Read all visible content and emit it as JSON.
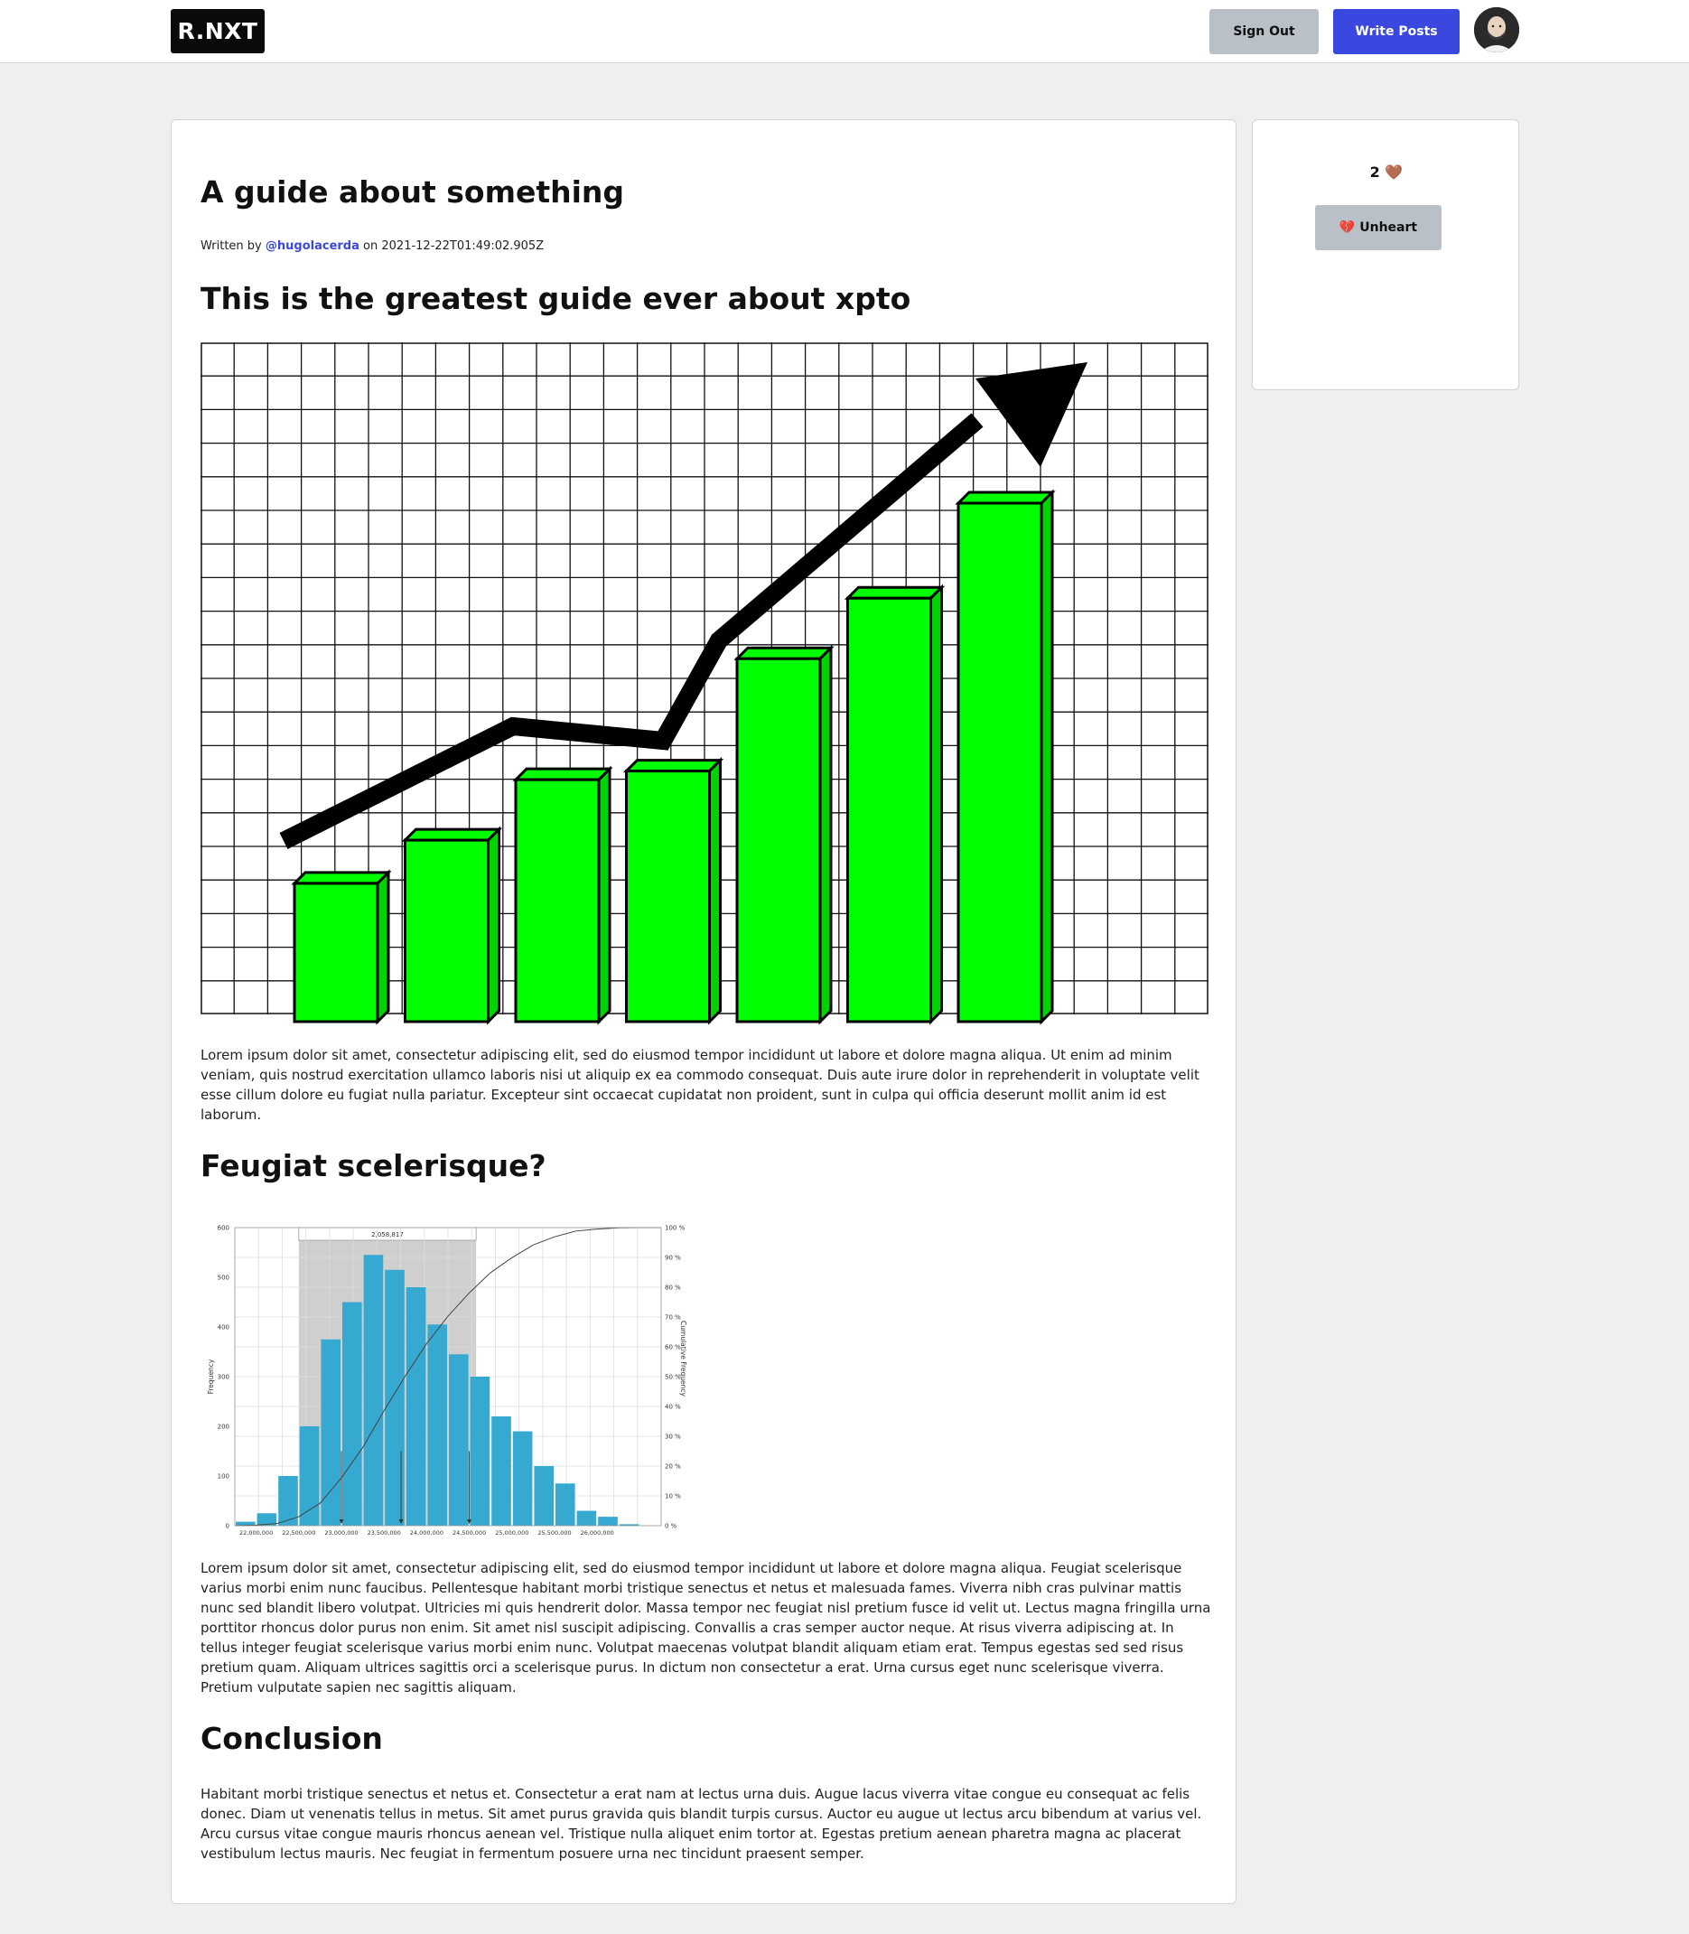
{
  "header": {
    "logo": "R.NXT",
    "sign_out_label": "Sign Out",
    "write_posts_label": "Write Posts"
  },
  "post": {
    "title": "A guide about something",
    "byline_prefix": "Written by",
    "author": "@hugolacerda",
    "byline_on": "on",
    "date": "2021-12-22T01:49:02.905Z",
    "heading1": "This is the greatest guide ever about xpto",
    "para1": "Lorem ipsum dolor sit amet, consectetur adipiscing elit, sed do eiusmod tempor incididunt ut labore et dolore magna aliqua. Ut enim ad minim veniam, quis nostrud exercitation ullamco laboris nisi ut aliquip ex ea commodo consequat. Duis aute irure dolor in reprehenderit in voluptate velit esse cillum dolore eu fugiat nulla pariatur. Excepteur sint occaecat cupidatat non proident, sunt in culpa qui officia deserunt mollit anim id est laborum.",
    "heading2": "Feugiat scelerisque?",
    "para2": "Lorem ipsum dolor sit amet, consectetur adipiscing elit, sed do eiusmod tempor incididunt ut labore et dolore magna aliqua. Feugiat scelerisque varius morbi enim nunc faucibus. Pellentesque habitant morbi tristique senectus et netus et malesuada fames. Viverra nibh cras pulvinar mattis nunc sed blandit libero volutpat. Ultricies mi quis hendrerit dolor. Massa tempor nec feugiat nisl pretium fusce id velit ut. Lectus magna fringilla urna porttitor rhoncus dolor purus non enim. Sit amet nisl suscipit adipiscing. Convallis a cras semper auctor neque. At risus viverra adipiscing at. In tellus integer feugiat scelerisque varius morbi enim nunc. Volutpat maecenas volutpat blandit aliquam etiam erat. Tempus egestas sed sed risus pretium quam. Aliquam ultrices sagittis orci a scelerisque purus. In dictum non consectetur a erat. Urna cursus eget nunc scelerisque viverra. Pretium vulputate sapien nec sagittis aliquam.",
    "heading3": "Conclusion",
    "para3": "Habitant morbi tristique senectus et netus et. Consectetur a erat nam at lectus urna duis. Augue lacus viverra vitae congue eu consequat ac felis donec. Diam ut venenatis tellus in metus. Sit amet purus gravida quis blandit turpis cursus. Auctor eu augue ut lectus arcu bibendum at varius vel. Arcu cursus vitae congue mauris rhoncus aenean vel. Tristique nulla aliquet enim tortor at. Egestas pretium aenean pharetra magna ac placerat vestibulum lectus mauris. Nec feugiat in fermentum posuere urna nec tincidunt praesent semper."
  },
  "sidebar": {
    "like_count": "2",
    "heart_icon": "🤎",
    "unheart_label": "💔 Unheart"
  },
  "colors": {
    "accent": "#3b48e0",
    "bar_green": "#00ff00",
    "histogram_blue": "#36a9d0"
  },
  "chart_data": [
    {
      "type": "bar",
      "title": "",
      "values": [
        1.6,
        2.1,
        2.8,
        2.9,
        4.2,
        4.9,
        6.0
      ],
      "grid": true,
      "trend_arrow": true
    },
    {
      "type": "bar",
      "title": "",
      "xlabel": "",
      "ylabel": "Frequency",
      "y2label": "Cumulative Frequency",
      "x_tick_labels": [
        "22,000,000",
        "22,500,000",
        "23,000,000",
        "23,500,000",
        "24,000,000",
        "24,500,000",
        "25,000,000",
        "25,500,000",
        "26,000,000"
      ],
      "y_ticks": [
        "0",
        "100",
        "200",
        "300",
        "400",
        "500",
        "600"
      ],
      "y2_ticks": [
        "0 %",
        "10 %",
        "20 %",
        "30 %",
        "40 %",
        "50 %",
        "60 %",
        "70 %",
        "80 %",
        "90 %",
        "100 %"
      ],
      "ylim": [
        0,
        600
      ],
      "highlight_label": "2,058,817",
      "bins_start": 21750000,
      "bin_width": 250000,
      "values": [
        8,
        25,
        100,
        200,
        375,
        450,
        545,
        515,
        480,
        405,
        345,
        300,
        220,
        190,
        120,
        85,
        30,
        18,
        3
      ],
      "cumulative_curve": true,
      "grid": true
    }
  ]
}
